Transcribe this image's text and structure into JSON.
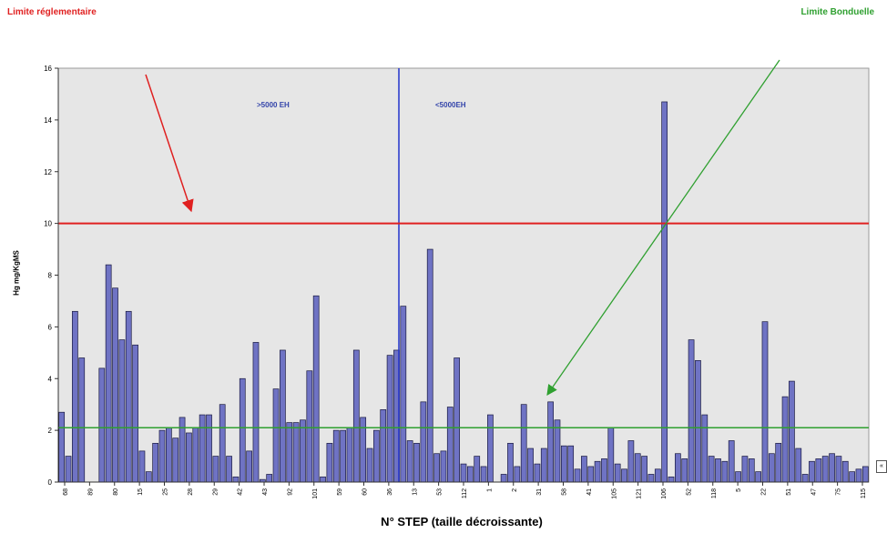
{
  "labels": {
    "top_left": "Limite réglementaire",
    "top_right": "Limite Bonduelle",
    "region_left": ">5000 EH",
    "region_right": "<5000EH",
    "right_marker": "«"
  },
  "colors": {
    "reglementaire": "#e02020",
    "bonduelle": "#2fa030",
    "bar_fill": "#6f73c4",
    "bar_stroke": "#1a1a40",
    "divider": "#2233cc",
    "plot_bg": "#e6e6e6",
    "region_text": "#3344aa"
  },
  "chart_data": {
    "type": "bar",
    "title": "",
    "xlabel": "N° STEP (taille décroissante)",
    "ylabel": "Hg mg/KgMS",
    "ylim": [
      0,
      16
    ],
    "yticks": [
      0,
      2,
      4,
      6,
      8,
      10,
      12,
      14,
      16
    ],
    "grid": false,
    "x_tick_labels": [
      "68",
      "89",
      "80",
      "15",
      "25",
      "28",
      "29",
      "42",
      "43",
      "92",
      "101",
      "59",
      "60",
      "36",
      "13",
      "53",
      "112",
      "1",
      "2",
      "31",
      "58",
      "41",
      "105",
      "121",
      "106",
      "52",
      "118",
      "5",
      "22",
      "51",
      "47",
      "75",
      "115"
    ],
    "values": [
      2.7,
      1.0,
      6.6,
      4.8,
      0.0,
      0.0,
      4.4,
      8.4,
      7.5,
      5.5,
      6.6,
      5.3,
      1.2,
      0.4,
      1.5,
      2.0,
      2.1,
      1.7,
      2.5,
      1.9,
      2.1,
      2.6,
      2.6,
      1.0,
      3.0,
      1.0,
      0.2,
      4.0,
      1.2,
      5.4,
      0.1,
      0.3,
      3.6,
      5.1,
      2.3,
      2.3,
      2.4,
      4.3,
      7.2,
      0.2,
      1.5,
      2.0,
      2.0,
      2.1,
      5.1,
      2.5,
      1.3,
      2.0,
      2.8,
      4.9,
      5.1,
      6.8,
      1.6,
      1.5,
      3.1,
      9.0,
      1.1,
      1.2,
      2.9,
      4.8,
      0.7,
      0.6,
      1.0,
      0.6,
      2.6,
      0.0,
      0.3,
      1.5,
      0.6,
      3.0,
      1.3,
      0.7,
      1.3,
      3.1,
      2.4,
      1.4,
      1.4,
      0.5,
      1.0,
      0.6,
      0.8,
      0.9,
      2.1,
      0.7,
      0.5,
      1.6,
      1.1,
      1.0,
      0.3,
      0.5,
      14.7,
      0.2,
      1.1,
      0.9,
      5.5,
      4.7,
      2.6,
      1.0,
      0.9,
      0.8,
      1.6,
      0.4,
      1.0,
      0.9,
      0.4,
      6.2,
      1.1,
      1.5,
      3.3,
      3.9,
      1.3,
      0.3,
      0.8,
      0.9,
      1.0,
      1.1,
      1.0,
      0.8,
      0.4,
      0.5,
      0.6
    ],
    "reference_lines": [
      {
        "value": 10,
        "color_key": "reglementaire"
      },
      {
        "value": 2.1,
        "color_key": "bonduelle"
      }
    ]
  }
}
